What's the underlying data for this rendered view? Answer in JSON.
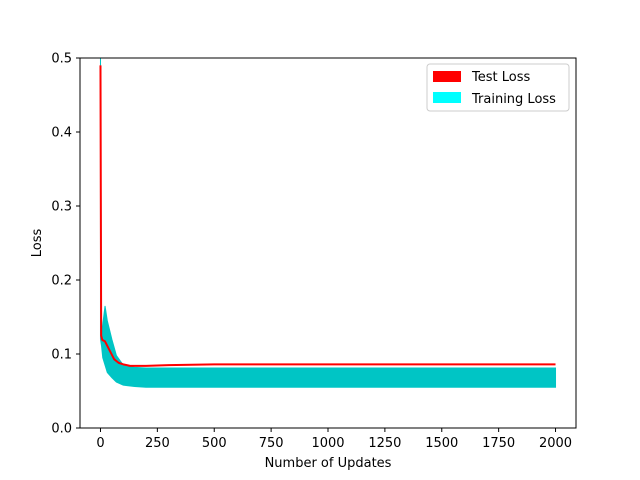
{
  "chart_data": {
    "type": "line",
    "title": "",
    "xlabel": "Number of Updates",
    "ylabel": "Loss",
    "xlim": [
      -90,
      2090
    ],
    "ylim": [
      0.0,
      0.5
    ],
    "x_ticks": [
      0,
      250,
      500,
      750,
      1000,
      1250,
      1500,
      1750,
      2000
    ],
    "y_ticks": [
      0.0,
      0.1,
      0.2,
      0.3,
      0.4,
      0.5
    ],
    "x_tick_labels": [
      "0",
      "250",
      "500",
      "750",
      "1000",
      "1250",
      "1500",
      "1750",
      "2000"
    ],
    "y_tick_labels": [
      "0.0",
      "0.1",
      "0.2",
      "0.3",
      "0.4",
      "0.5"
    ],
    "grid": false,
    "legend_position": "top-right",
    "series": [
      {
        "name": "Test Loss",
        "color": "#ff0000",
        "x": [
          0,
          3,
          8,
          20,
          40,
          60,
          80,
          100,
          130,
          160,
          200,
          300,
          500,
          1000,
          1500,
          2000
        ],
        "y": [
          0.49,
          0.125,
          0.119,
          0.117,
          0.105,
          0.093,
          0.088,
          0.086,
          0.084,
          0.084,
          0.084,
          0.085,
          0.086,
          0.086,
          0.086,
          0.086
        ]
      },
      {
        "name": "Training Loss",
        "color": "#00c5c5",
        "x": [
          0,
          5,
          10,
          20,
          30,
          50,
          70,
          100,
          150,
          200,
          300,
          500,
          1000,
          1500,
          2000
        ],
        "y_upper": [
          0.5,
          0.125,
          0.14,
          0.165,
          0.145,
          0.12,
          0.098,
          0.085,
          0.082,
          0.081,
          0.081,
          0.081,
          0.081,
          0.081,
          0.081
        ],
        "y_lower": [
          0.12,
          0.11,
          0.095,
          0.085,
          0.075,
          0.068,
          0.062,
          0.058,
          0.056,
          0.055,
          0.055,
          0.055,
          0.055,
          0.055,
          0.055
        ]
      }
    ]
  }
}
